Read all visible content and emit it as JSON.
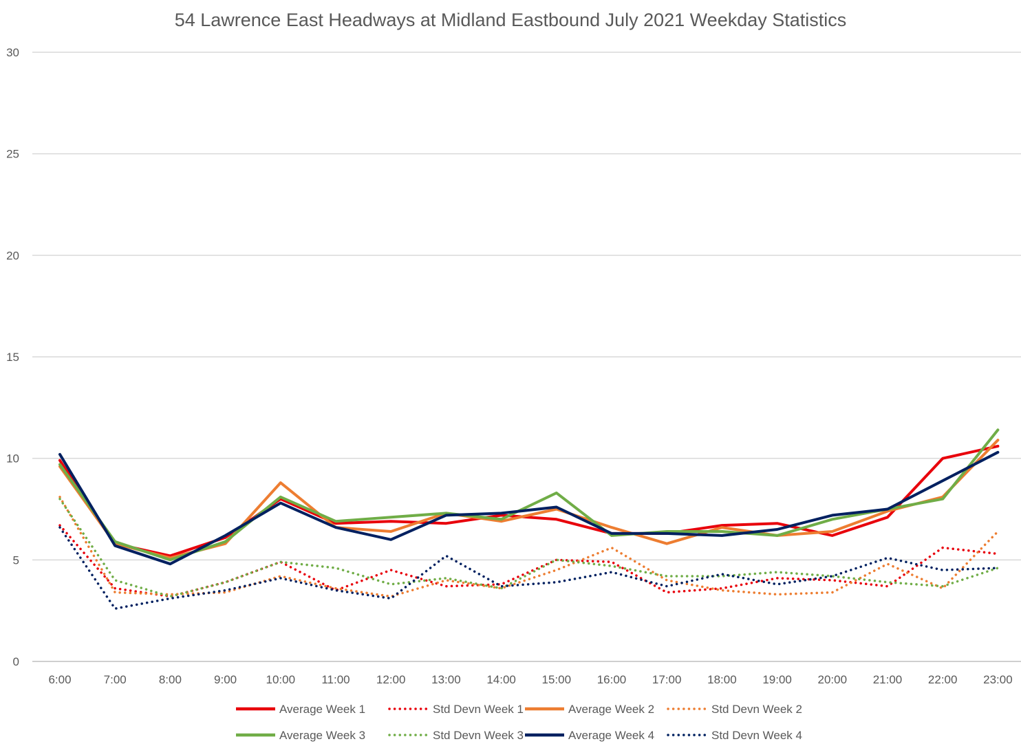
{
  "chart_data": {
    "type": "line",
    "title": "54 Lawrence East Headways at Midland Eastbound July 2021 Weekday Statistics",
    "xlabel": "",
    "ylabel": "",
    "categories": [
      "6:00",
      "7:00",
      "8:00",
      "9:00",
      "10:00",
      "11:00",
      "12:00",
      "13:00",
      "14:00",
      "15:00",
      "16:00",
      "17:00",
      "18:00",
      "19:00",
      "20:00",
      "21:00",
      "22:00",
      "23:00"
    ],
    "ylim": [
      0,
      30
    ],
    "yticks": [
      0,
      5,
      10,
      15,
      20,
      25,
      30
    ],
    "grid": "horizontal",
    "legend_position": "bottom",
    "series": [
      {
        "name": "Average Week 1",
        "color": "#E8000B",
        "style": "solid",
        "values": [
          9.9,
          5.8,
          5.2,
          6.1,
          8.0,
          6.8,
          6.9,
          6.8,
          7.2,
          7.0,
          6.3,
          6.3,
          6.7,
          6.8,
          6.2,
          7.1,
          10.0,
          10.6
        ]
      },
      {
        "name": "Std Devn Week 1",
        "color": "#E8000B",
        "style": "dotted",
        "values": [
          6.7,
          3.6,
          3.2,
          3.9,
          4.9,
          3.5,
          4.5,
          3.7,
          3.8,
          5.0,
          4.9,
          3.4,
          3.6,
          4.1,
          4.0,
          3.7,
          5.6,
          5.3
        ]
      },
      {
        "name": "Average Week 2",
        "color": "#ED7D31",
        "style": "solid",
        "values": [
          9.6,
          5.8,
          5.1,
          5.8,
          8.8,
          6.6,
          6.4,
          7.3,
          6.9,
          7.5,
          6.6,
          5.8,
          6.6,
          6.2,
          6.4,
          7.4,
          8.1,
          10.9
        ]
      },
      {
        "name": "Std Devn Week 2",
        "color": "#ED7D31",
        "style": "dotted",
        "values": [
          8.1,
          3.4,
          3.3,
          3.4,
          4.2,
          3.6,
          3.2,
          4.0,
          3.6,
          4.5,
          5.6,
          4.0,
          3.5,
          3.3,
          3.4,
          4.8,
          3.6,
          6.4
        ]
      },
      {
        "name": "Average Week 3",
        "color": "#70AD47",
        "style": "solid",
        "values": [
          9.7,
          5.9,
          5.0,
          5.9,
          8.1,
          6.9,
          7.1,
          7.3,
          7.0,
          8.3,
          6.2,
          6.4,
          6.4,
          6.2,
          7.0,
          7.5,
          8.0,
          11.4
        ]
      },
      {
        "name": "Std Devn Week 3",
        "color": "#70AD47",
        "style": "dotted",
        "values": [
          8.0,
          4.0,
          3.2,
          3.9,
          4.9,
          4.6,
          3.8,
          4.1,
          3.6,
          5.0,
          4.7,
          4.2,
          4.2,
          4.4,
          4.2,
          3.9,
          3.7,
          4.6
        ]
      },
      {
        "name": "Average Week 4",
        "color": "#002060",
        "style": "solid",
        "values": [
          10.2,
          5.7,
          4.8,
          6.2,
          7.8,
          6.6,
          6.0,
          7.2,
          7.3,
          7.6,
          6.3,
          6.3,
          6.2,
          6.5,
          7.2,
          7.5,
          8.9,
          10.3
        ]
      },
      {
        "name": "Std Devn Week 4",
        "color": "#002060",
        "style": "dotted",
        "values": [
          6.6,
          2.6,
          3.1,
          3.5,
          4.1,
          3.5,
          3.1,
          5.2,
          3.7,
          3.9,
          4.4,
          3.7,
          4.3,
          3.8,
          4.2,
          5.1,
          4.5,
          4.6
        ]
      }
    ]
  }
}
